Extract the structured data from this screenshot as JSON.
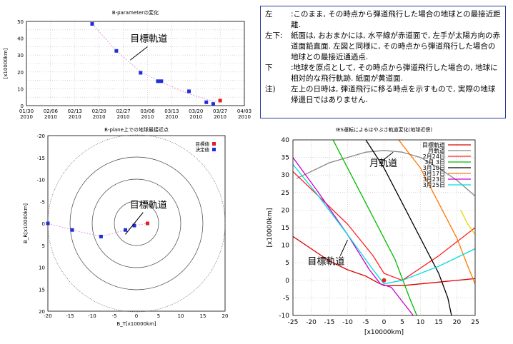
{
  "chart_data": [
    {
      "type": "scatter",
      "title": "B-parameterの変化",
      "ylabel": "[x10000km]",
      "xlim": [
        "2010-01-30",
        "2010-04-03"
      ],
      "ylim": [
        0,
        50
      ],
      "x_ticks": [
        "01/30\n2010",
        "02/06\n2010",
        "02/13\n2010",
        "02/20\n2010",
        "02/27\n2010",
        "03/06\n2010",
        "03/13\n2010",
        "03/20\n2010",
        "03/27\n2010",
        "04/03\n2010"
      ],
      "y_ticks": [
        0,
        10,
        20,
        30,
        40,
        50
      ],
      "grid": true,
      "series": [
        {
          "name": "決定値",
          "color": "#1f2fd8",
          "x": [
            "2010-02-18",
            "2010-02-25",
            "2010-03-04",
            "2010-03-09",
            "2010-03-10",
            "2010-03-18",
            "2010-03-23",
            "2010-03-25"
          ],
          "y": [
            48.5,
            32.5,
            19.5,
            14.5,
            14.5,
            8.5,
            2,
            1
          ]
        },
        {
          "name": "目標値",
          "color": "#e02020",
          "x": [
            "2010-03-27"
          ],
          "y": [
            3
          ]
        }
      ],
      "trend_curve": {
        "x": [
          "2010-02-18",
          "2010-02-25",
          "2010-03-04",
          "2010-03-11",
          "2010-03-18",
          "2010-03-25",
          "2010-03-27"
        ],
        "y": [
          48.5,
          32.5,
          20,
          13,
          7,
          2.5,
          3
        ]
      },
      "annotation": "目標軌道"
    },
    {
      "type": "scatter",
      "title": "B-plane上での地球最接近点",
      "xlabel": "B_T[x10000km]",
      "ylabel": "B_R[x10000km]",
      "xlim": [
        -20,
        20
      ],
      "ylim": [
        -20,
        20
      ],
      "x_ticks": [
        -20,
        -15,
        -10,
        -5,
        0,
        5,
        10,
        15,
        20
      ],
      "y_ticks": [
        -20,
        -15,
        -10,
        -5,
        0,
        5,
        10,
        15,
        20
      ],
      "circle_radii": [
        5,
        10,
        15,
        20
      ],
      "series": [
        {
          "name": "目標値",
          "color": "#e02020",
          "x": [
            2.5
          ],
          "y": [
            0
          ]
        },
        {
          "name": "決定値",
          "color": "#1f2fd8",
          "x": [
            -20,
            -14.5,
            -8,
            -2.5,
            -0.5
          ],
          "y": [
            0,
            1.5,
            3,
            1.5,
            0.5
          ]
        }
      ],
      "annotation": "目標軌道"
    },
    {
      "type": "line",
      "title": "IES運転によるはやぶさ軌道変化(地球近傍)",
      "xlabel": "[x10000km]",
      "ylabel": "[x10000km]",
      "xlim": [
        -25,
        25
      ],
      "ylim": [
        -10,
        40
      ],
      "x_ticks": [
        -25,
        -20,
        -15,
        -10,
        -5,
        0,
        5,
        10,
        15,
        20,
        25
      ],
      "y_ticks": [
        -10,
        -5,
        0,
        5,
        10,
        15,
        20,
        25,
        30,
        35,
        40
      ],
      "earth": {
        "x": 0,
        "y": 0,
        "color": "#d03020"
      },
      "series": [
        {
          "name": "目標軌道",
          "color": "#dd0000",
          "points": [
            [
              -25,
              12.5
            ],
            [
              -20,
              9
            ],
            [
              -15,
              5.5
            ],
            [
              -10,
              3
            ],
            [
              -5,
              1.2
            ],
            [
              -2,
              -0.5
            ],
            [
              0,
              -1.5
            ],
            [
              5,
              -1.5
            ],
            [
              15,
              -0.5
            ],
            [
              25,
              0.5
            ]
          ]
        },
        {
          "name": "月軌道",
          "color": "#888888",
          "points": [
            [
              -24,
              29
            ],
            [
              -20,
              31
            ],
            [
              -15,
              33.5
            ],
            [
              -10,
              35
            ],
            [
              -5,
              36.5
            ],
            [
              0,
              37
            ],
            [
              5,
              36.5
            ],
            [
              10,
              35
            ],
            [
              15,
              32
            ],
            [
              20,
              28.5
            ],
            [
              25,
              24
            ]
          ]
        },
        {
          "name": "2月24日",
          "color": "#ff2020",
          "points": [
            [
              -25,
              31
            ],
            [
              -10,
              16
            ],
            [
              -3,
              7
            ],
            [
              0,
              2
            ],
            [
              5,
              0
            ],
            [
              15,
              7
            ],
            [
              25,
              15
            ]
          ]
        },
        {
          "name": "3月 3日",
          "color": "#00bb00",
          "points": [
            [
              -14,
              40
            ],
            [
              -10,
              32
            ],
            [
              -5,
              22
            ],
            [
              0,
              12
            ],
            [
              3,
              6
            ],
            [
              7,
              -5
            ],
            [
              9,
              -10
            ]
          ]
        },
        {
          "name": "3月10日",
          "color": "#000000",
          "points": [
            [
              -5,
              40
            ],
            [
              0,
              32
            ],
            [
              5,
              22
            ],
            [
              10,
              12
            ],
            [
              15,
              2
            ],
            [
              17.5,
              -5
            ],
            [
              18.5,
              -10
            ]
          ]
        },
        {
          "name": "3月17日",
          "color": "#ff7700",
          "points": [
            [
              4,
              40
            ],
            [
              10,
              32
            ],
            [
              15,
              22
            ],
            [
              20,
              12
            ],
            [
              23,
              4
            ],
            [
              25,
              -1
            ]
          ]
        },
        {
          "name": "3月23日",
          "color": "#cc00cc",
          "points": [
            [
              -25,
              35
            ],
            [
              -18,
              25
            ],
            [
              -10,
              13
            ],
            [
              -4,
              3
            ],
            [
              -1,
              -1
            ],
            [
              2,
              -2
            ],
            [
              8,
              -10
            ]
          ]
        },
        {
          "name": "3月25日",
          "color": "#00dddd",
          "points": [
            [
              -25,
              33
            ],
            [
              -18,
              24
            ],
            [
              -10,
              13
            ],
            [
              -3,
              3
            ],
            [
              0,
              -1
            ],
            [
              5,
              0
            ],
            [
              15,
              4
            ],
            [
              25,
              9
            ]
          ]
        },
        {
          "name": "",
          "color": "#dddd00",
          "points": [
            [
              21,
              20
            ],
            [
              23,
              16
            ],
            [
              25,
              13
            ]
          ]
        }
      ],
      "annotations": [
        "月軌道",
        "目標軌道"
      ]
    }
  ],
  "notes": [
    {
      "key": "左",
      "text": ":このまま, その時点から弾道飛行した場合の地球との最接近距離."
    },
    {
      "key": "左下:",
      "text": "紙面は, おおまかには, 水平線が赤道面で, 左手が太陽方向の赤道面鉛直面. 左図と同様に, その時点から弾道飛行した場合の地球との最接近通過点."
    },
    {
      "key": "下",
      "text": ":地球を原点として, その時点から弾道飛行した場合の, 地球に相対的な飛行軌跡. 紙面が黄道面."
    },
    {
      "key": "注)",
      "text": "左上の日時は, 弾道飛行に移る時点を示すもので, 実際の地球帰還日ではありません."
    }
  ]
}
